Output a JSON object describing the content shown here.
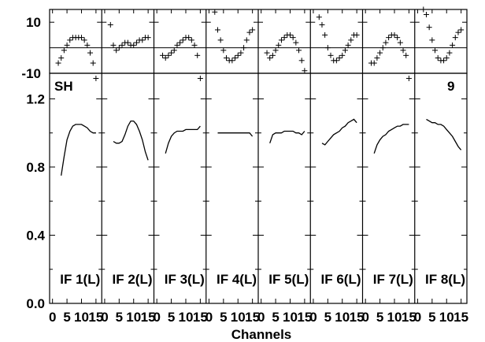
{
  "chart_data": {
    "type": "line",
    "title": "",
    "source_label": "SH",
    "figure_number": "9",
    "xlabel": "Channels",
    "x_ticks": [
      0,
      5,
      10,
      15
    ],
    "x_tick_labels": [
      "0",
      "5",
      "10",
      "15"
    ],
    "top_panel": {
      "type": "scatter",
      "marker": "plus",
      "ylim": [
        -10,
        15
      ],
      "y_ticks": [
        10,
        -10
      ],
      "y_tick_labels": [
        "10",
        "-10"
      ],
      "reference_line_y": 0
    },
    "bottom_panel": {
      "type": "line",
      "ylim": [
        0,
        1.35
      ],
      "y_ticks": [
        0.0,
        0.4,
        0.8,
        1.2
      ],
      "y_tick_labels": [
        "0.0",
        "0.4",
        "0.8",
        "1.2"
      ]
    },
    "panels": [
      {
        "label": "IF 1(L)",
        "phase": {
          "x": [
            2,
            3,
            4,
            5,
            6,
            7,
            8,
            9,
            10,
            11,
            12,
            13,
            14,
            15
          ],
          "y": [
            -6,
            -4,
            -1,
            1,
            3,
            4,
            4,
            4,
            4,
            3,
            1,
            -2,
            -6,
            -12
          ]
        },
        "amplitude": {
          "x": [
            3,
            4,
            5,
            6,
            7,
            8,
            9,
            10,
            11,
            12,
            13,
            14,
            15
          ],
          "y": [
            0.75,
            0.86,
            0.96,
            1.01,
            1.04,
            1.05,
            1.05,
            1.05,
            1.04,
            1.03,
            1.01,
            1.0,
            1.0
          ]
        }
      },
      {
        "label": "IF 2(L)",
        "phase": {
          "x": [
            2,
            3,
            4,
            5,
            6,
            7,
            8,
            9,
            10,
            11,
            12,
            13,
            14,
            15
          ],
          "y": [
            9,
            1,
            -1,
            0,
            1,
            2,
            2,
            1,
            1,
            2,
            3,
            3,
            4,
            4
          ]
        },
        "amplitude": {
          "x": [
            3,
            4,
            5,
            6,
            7,
            8,
            9,
            10,
            11,
            12,
            13,
            14,
            15
          ],
          "y": [
            0.95,
            0.94,
            0.94,
            0.95,
            0.99,
            1.04,
            1.07,
            1.07,
            1.05,
            1.01,
            0.96,
            0.89,
            0.84
          ]
        }
      },
      {
        "label": "IF 3(L)",
        "phase": {
          "x": [
            2,
            3,
            4,
            5,
            6,
            7,
            8,
            9,
            10,
            11,
            12,
            13,
            14,
            15
          ],
          "y": [
            -3,
            -4,
            -3,
            -2,
            -1,
            1,
            2,
            3,
            4,
            4,
            3,
            1,
            -3,
            -12
          ]
        },
        "amplitude": {
          "x": [
            3,
            4,
            5,
            6,
            7,
            8,
            9,
            10,
            11,
            12,
            13,
            14,
            15
          ],
          "y": [
            0.88,
            0.94,
            0.98,
            1.0,
            1.01,
            1.01,
            1.01,
            1.02,
            1.02,
            1.02,
            1.02,
            1.02,
            1.04
          ]
        }
      },
      {
        "label": "IF 4(L)",
        "phase": {
          "x": [
            2,
            3,
            4,
            5,
            6,
            7,
            8,
            9,
            10,
            11,
            12,
            13,
            14,
            15
          ],
          "y": [
            14,
            7,
            3,
            -1,
            -4,
            -5,
            -5,
            -4,
            -3,
            -2,
            0,
            3,
            6,
            7
          ]
        },
        "amplitude": {
          "x": [
            3,
            4,
            5,
            6,
            7,
            8,
            9,
            10,
            11,
            12,
            13,
            14,
            15
          ],
          "y": [
            1.0,
            1.0,
            1.0,
            1.0,
            1.0,
            1.0,
            1.0,
            1.0,
            1.0,
            1.0,
            1.0,
            1.0,
            0.98
          ]
        }
      },
      {
        "label": "IF 5(L)",
        "phase": {
          "x": [
            2,
            3,
            4,
            5,
            6,
            7,
            8,
            9,
            10,
            11,
            12,
            13,
            14,
            15
          ],
          "y": [
            -2,
            -4,
            -3,
            -1,
            1,
            3,
            4,
            5,
            5,
            4,
            2,
            -1,
            -5,
            -9
          ]
        },
        "amplitude": {
          "x": [
            3,
            4,
            5,
            6,
            7,
            8,
            9,
            10,
            11,
            12,
            13,
            14,
            15
          ],
          "y": [
            0.94,
            0.99,
            1.0,
            1.0,
            1.0,
            1.01,
            1.01,
            1.01,
            1.01,
            1.0,
            1.0,
            0.99,
            1.01
          ]
        }
      },
      {
        "label": "IF 6(L)",
        "phase": {
          "x": [
            2,
            3,
            4,
            5,
            6,
            7,
            8,
            9,
            10,
            11,
            12,
            13,
            14,
            15
          ],
          "y": [
            12,
            9,
            5,
            0,
            -3,
            -5,
            -5,
            -4,
            -3,
            -1,
            1,
            3,
            5,
            5
          ]
        },
        "amplitude": {
          "x": [
            3,
            4,
            5,
            6,
            7,
            8,
            9,
            10,
            11,
            12,
            13,
            14,
            15
          ],
          "y": [
            0.94,
            0.93,
            0.95,
            0.97,
            0.99,
            1.0,
            1.01,
            1.03,
            1.04,
            1.06,
            1.07,
            1.08,
            1.06
          ]
        }
      },
      {
        "label": "IF 7(L)",
        "phase": {
          "x": [
            2,
            3,
            4,
            5,
            6,
            7,
            8,
            9,
            10,
            11,
            12,
            13,
            14,
            15
          ],
          "y": [
            -6,
            -6,
            -4,
            -2,
            0,
            2,
            4,
            5,
            5,
            4,
            2,
            -1,
            -3,
            -12
          ]
        },
        "amplitude": {
          "x": [
            3,
            4,
            5,
            6,
            7,
            8,
            9,
            10,
            11,
            12,
            13,
            14,
            15
          ],
          "y": [
            0.88,
            0.93,
            0.96,
            0.98,
            0.99,
            1.01,
            1.02,
            1.03,
            1.04,
            1.04,
            1.05,
            1.05,
            1.05
          ]
        }
      },
      {
        "label": "IF 8(L)",
        "phase": {
          "x": [
            2,
            3,
            4,
            5,
            6,
            7,
            8,
            9,
            10,
            11,
            12,
            13,
            14,
            15
          ],
          "y": [
            15,
            13,
            8,
            3,
            -1,
            -4,
            -5,
            -5,
            -4,
            -2,
            1,
            4,
            6,
            7
          ]
        },
        "amplitude": {
          "x": [
            3,
            4,
            5,
            6,
            7,
            8,
            9,
            10,
            11,
            12,
            13,
            14,
            15
          ],
          "y": [
            1.08,
            1.07,
            1.06,
            1.06,
            1.05,
            1.05,
            1.04,
            1.02,
            1.0,
            0.98,
            0.95,
            0.92,
            0.9
          ]
        }
      }
    ]
  }
}
